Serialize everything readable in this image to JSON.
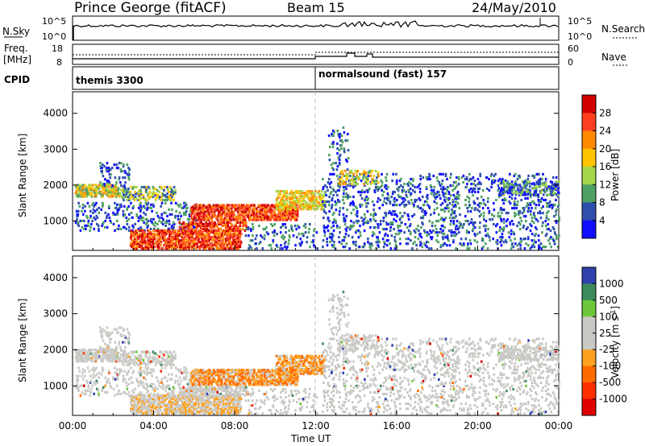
{
  "header": {
    "station": "Prince George (fitACF)",
    "beam": "Beam 15",
    "date": "24/May/2010"
  },
  "status_panels": {
    "nsky_label": "N.Sky",
    "nsky_ticks": [
      "10^5",
      "10^0"
    ],
    "nsearch_label": "N.Search",
    "nsearch_ticks": [
      "10^5",
      "10^0"
    ],
    "freq_label_1": "Freq.",
    "freq_label_2": "[MHz]",
    "freq_ticks": [
      "18",
      "8"
    ],
    "nave_label": "Nave",
    "nave_ticks": [
      "60",
      "0"
    ],
    "cpid_label": "CPID",
    "cpid_segments": [
      {
        "text": "themis 3300",
        "start_hour": 0
      },
      {
        "text": "normalsound (fast) 157",
        "start_hour": 12
      }
    ]
  },
  "chart_data": [
    {
      "type": "heatmap",
      "panel": "power",
      "ylabel": "Slant Range [km]",
      "ylim": [
        180,
        4600
      ],
      "y_ticks": [
        "4000",
        "3000",
        "2000",
        "1000"
      ],
      "xlim_hours": [
        0,
        24
      ],
      "colorbar": {
        "label": "Power [dB]",
        "tick_labels": [
          "28",
          "24",
          "20",
          "16",
          "12",
          "8",
          "4"
        ],
        "colors": [
          "#d00000",
          "#ff4020",
          "#ff8a00",
          "#ffc400",
          "#a4d84a",
          "#4fa064",
          "#2f4fae",
          "#1010ff"
        ]
      },
      "features": [
        {
          "desc_hours": [
            0,
            2
          ],
          "range_km": [
            1700,
            1950
          ],
          "level": "16-24"
        },
        {
          "desc_hours": [
            5,
            12
          ],
          "range_km": [
            1000,
            1400
          ],
          "level": "24-30"
        },
        {
          "desc_hours": [
            3,
            8
          ],
          "range_km": [
            200,
            650
          ],
          "level": "24-30"
        }
      ]
    },
    {
      "type": "heatmap",
      "panel": "velocity",
      "ylabel": "Slant Range [km]",
      "ylim": [
        180,
        4600
      ],
      "y_ticks": [
        "4000",
        "3000",
        "2000",
        "1000"
      ],
      "xlim_hours": [
        0,
        24
      ],
      "xlabel": "Time UT",
      "x_ticks": [
        "00:00",
        "04:00",
        "08:00",
        "12:00",
        "16:00",
        "20:00",
        "00:00"
      ],
      "colorbar": {
        "label": "Velocity [m s",
        "superscript": "-1",
        "label_close": "]",
        "tick_labels": [
          "1000",
          "500",
          "100",
          "25",
          "-25",
          "-100",
          "-500",
          "-1000"
        ],
        "colors": [
          "#2f3fae",
          "#3a8a5c",
          "#6cc83a",
          "#c8c8c4",
          "#c8c8c4",
          "#ffa020",
          "#ff6a00",
          "#ff3000",
          "#e00000"
        ]
      }
    }
  ],
  "colors": {
    "marker_line": "#bdbdbd"
  }
}
